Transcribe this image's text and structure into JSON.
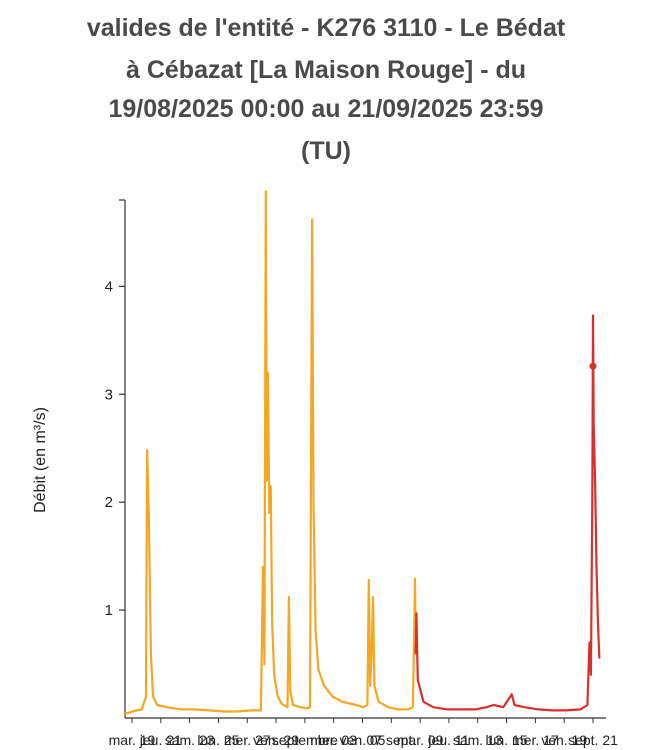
{
  "chart_data": {
    "type": "line",
    "title_lines": [
      "valides de l'entité - K276 3110 - Le Bédat",
      "à Cébazat [La Maison Rouge] - du",
      "19/08/2025 00:00 au 21/09/2025 23:59",
      "(TU)"
    ],
    "ylabel": "Débit (en m³/s)",
    "ylim": [
      0,
      4.8
    ],
    "yticks": [
      1,
      2,
      3,
      4
    ],
    "x_tick_labels": [
      "mar. 19",
      "jeu. 21",
      "sam. 23",
      "lun. 25",
      "mer. 27",
      "ven. 29",
      "septembre",
      "mer. 03",
      "ven. 05",
      "07 sept.",
      "mar. 09",
      "jeu. 11",
      "sam. 13",
      "lun. 15",
      "mer. 17",
      "ven. 19",
      "sept. 21"
    ],
    "colors": {
      "series_orange": "#f5a623",
      "series_red": "#d9302c",
      "axis": "#333333"
    },
    "series": [
      {
        "color": "#f5a623",
        "points": [
          [
            0,
            0.04
          ],
          [
            0.3,
            0.05
          ],
          [
            0.8,
            0.07
          ],
          [
            1.2,
            0.08
          ],
          [
            1.5,
            0.2
          ],
          [
            1.58,
            2.48
          ],
          [
            1.7,
            1.9
          ],
          [
            1.85,
            0.6
          ],
          [
            2.0,
            0.2
          ],
          [
            2.3,
            0.12
          ],
          [
            3.0,
            0.1
          ],
          [
            4.0,
            0.08
          ],
          [
            5.0,
            0.08
          ],
          [
            6.0,
            0.07
          ],
          [
            7.0,
            0.06
          ],
          [
            8.0,
            0.06
          ],
          [
            9.0,
            0.07
          ],
          [
            9.7,
            0.07
          ],
          [
            9.85,
            1.4
          ],
          [
            9.95,
            0.5
          ],
          [
            10.05,
            4.88
          ],
          [
            10.12,
            2.2
          ],
          [
            10.2,
            3.2
          ],
          [
            10.3,
            1.9
          ],
          [
            10.4,
            2.15
          ],
          [
            10.5,
            0.9
          ],
          [
            10.65,
            0.4
          ],
          [
            10.9,
            0.2
          ],
          [
            11.2,
            0.13
          ],
          [
            11.6,
            0.1
          ],
          [
            11.7,
            1.12
          ],
          [
            11.8,
            0.25
          ],
          [
            12.0,
            0.12
          ],
          [
            12.5,
            0.1
          ],
          [
            13.0,
            0.09
          ],
          [
            13.2,
            0.1
          ],
          [
            13.35,
            4.62
          ],
          [
            13.45,
            2.0
          ],
          [
            13.6,
            0.8
          ],
          [
            13.8,
            0.45
          ],
          [
            14.2,
            0.3
          ],
          [
            14.8,
            0.2
          ],
          [
            15.5,
            0.15
          ],
          [
            16.5,
            0.12
          ],
          [
            17.0,
            0.1
          ],
          [
            17.3,
            0.12
          ],
          [
            17.4,
            1.28
          ],
          [
            17.5,
            0.3
          ],
          [
            17.6,
            0.6
          ],
          [
            17.7,
            1.12
          ],
          [
            17.8,
            0.3
          ],
          [
            18.1,
            0.15
          ],
          [
            18.8,
            0.1
          ],
          [
            19.5,
            0.08
          ],
          [
            20.2,
            0.08
          ],
          [
            20.55,
            0.1
          ],
          [
            20.7,
            1.29
          ],
          [
            20.75,
            0.6
          ]
        ]
      },
      {
        "color": "#d9302c",
        "points": [
          [
            20.75,
            0.6
          ],
          [
            20.8,
            0.97
          ],
          [
            20.9,
            0.35
          ],
          [
            21.3,
            0.15
          ],
          [
            22.0,
            0.1
          ],
          [
            23.0,
            0.08
          ],
          [
            24.0,
            0.08
          ],
          [
            25.0,
            0.08
          ],
          [
            25.8,
            0.1
          ],
          [
            26.3,
            0.12
          ],
          [
            27.0,
            0.1
          ],
          [
            27.4,
            0.18
          ],
          [
            27.6,
            0.22
          ],
          [
            27.8,
            0.12
          ],
          [
            28.5,
            0.1
          ],
          [
            29.5,
            0.08
          ],
          [
            30.5,
            0.07
          ],
          [
            31.5,
            0.07
          ],
          [
            32.5,
            0.08
          ],
          [
            33.0,
            0.12
          ],
          [
            33.15,
            0.7
          ],
          [
            33.25,
            0.4
          ],
          [
            33.35,
            2.0
          ],
          [
            33.4,
            3.73
          ],
          [
            33.45,
            2.7
          ],
          [
            33.55,
            2.2
          ],
          [
            33.65,
            1.4
          ],
          [
            33.75,
            0.9
          ],
          [
            33.85,
            0.56
          ]
        ]
      }
    ]
  }
}
